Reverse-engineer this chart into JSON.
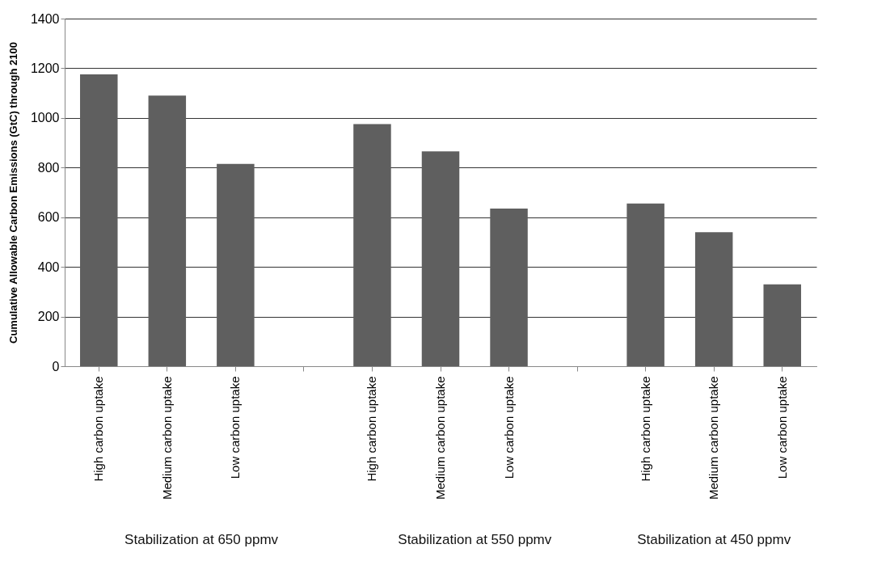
{
  "chart_data": {
    "type": "bar",
    "ylabel": "Cumulative Allowable Carbon Emissions (GtC) through 2100",
    "categories": [
      "High carbon uptake",
      "Medium carbon uptake",
      "Low carbon uptake",
      null,
      "High carbon uptake",
      "Medium carbon uptake",
      "Low carbon uptake",
      null,
      "High carbon uptake",
      "Medium carbon uptake",
      "Low carbon uptake"
    ],
    "values": [
      1175,
      1090,
      815,
      null,
      975,
      865,
      635,
      null,
      655,
      540,
      330
    ],
    "color": "#5f5f5f",
    "ylim": [
      0,
      1400
    ],
    "yticks": [
      0,
      200,
      400,
      600,
      800,
      1000,
      1200,
      1400
    ],
    "grid": "y",
    "annotations": [
      "Stabilization at 650 ppmv",
      "Stabilization at 550 ppmv",
      "Stabilization at 450 ppmv"
    ]
  }
}
